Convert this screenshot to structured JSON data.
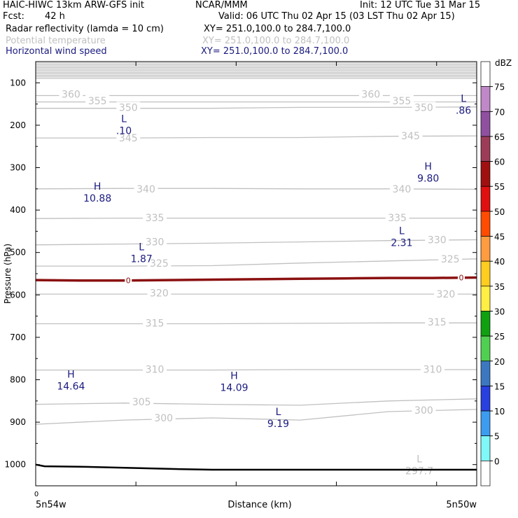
{
  "header": {
    "title": "HAIC-HIWC 13km ARW-GFS init",
    "org": "NCAR/MMM",
    "init": "Init: 12 UTC Tue 31 Mar 15",
    "fcst_label": "Fcst:",
    "fcst_value": "42 h",
    "valid": "Valid: 06 UTC Thu 02 Apr 15 (03 LST Thu 02 Apr 15)",
    "fields": [
      {
        "name": "Radar reflectivity (lamda = 10 cm)",
        "xy": "XY= 251.0,100.0 to 284.7,100.0"
      },
      {
        "name": "Potential temperature",
        "xy": "XY= 251.0,100.0 to 284.7,100.0"
      },
      {
        "name": "Horizontal wind speed",
        "xy": "XY= 251.0,100.0 to 284.7,100.0"
      }
    ]
  },
  "colors": {
    "theta": "#c0c0c0",
    "wind_label": "#1a1a80",
    "freezing_line": "#8b1010",
    "terrain": "#000000"
  },
  "chart_data": {
    "type": "line",
    "ylabel": "Pressure (hPa)",
    "xlabel": "Distance (km)",
    "x_tick_label": "0",
    "x_left_label": "5n54w",
    "x_right_label": "5n50w",
    "y_scale": "linear, reversed (pressure decreasing upward)",
    "ylim": [
      1050,
      50
    ],
    "yticks": [
      100,
      200,
      300,
      400,
      500,
      600,
      700,
      800,
      900,
      1000
    ],
    "x": [
      0,
      0.2,
      0.4,
      0.6,
      0.8,
      1.0
    ],
    "theta_isentropes_K": [
      {
        "level": "300",
        "p": [
          905,
          895,
          890,
          895,
          875,
          870
        ]
      },
      {
        "level": "305",
        "p": [
          858,
          855,
          858,
          860,
          850,
          845
        ]
      },
      {
        "level": "310",
        "p": [
          777,
          777,
          777,
          776,
          776,
          776
        ]
      },
      {
        "level": "315",
        "p": [
          668,
          668,
          668,
          667,
          666,
          666
        ]
      },
      {
        "level": "320",
        "p": [
          598,
          598,
          598,
          598,
          598,
          598
        ]
      },
      {
        "level": "325",
        "p": [
          532,
          532,
          531,
          525,
          520,
          515
        ]
      },
      {
        "level": "330",
        "p": [
          482,
          480,
          478,
          475,
          472,
          470
        ]
      },
      {
        "level": "335",
        "p": [
          420,
          419,
          419,
          419,
          419,
          419
        ]
      },
      {
        "level": "340",
        "p": [
          350,
          349,
          349,
          350,
          350,
          351
        ]
      },
      {
        "level": "345",
        "p": [
          230,
          230,
          229,
          229,
          226,
          225
        ]
      },
      {
        "level": "350",
        "p": [
          160,
          160,
          160,
          158,
          158,
          157
        ]
      },
      {
        "level": "355",
        "p": [
          145,
          145,
          145,
          145,
          145,
          145
        ]
      },
      {
        "level": "360",
        "p": [
          130,
          130,
          130,
          130,
          130,
          130
        ]
      }
    ],
    "theta_labels": [
      {
        "text": "360",
        "x": 0.08,
        "p": 127
      },
      {
        "text": "355",
        "x": 0.14,
        "p": 142
      },
      {
        "text": "350",
        "x": 0.21,
        "p": 158
      },
      {
        "text": "345",
        "x": 0.21,
        "p": 230
      },
      {
        "text": "340",
        "x": 0.25,
        "p": 350
      },
      {
        "text": "335",
        "x": 0.27,
        "p": 418
      },
      {
        "text": "330",
        "x": 0.27,
        "p": 475
      },
      {
        "text": "325",
        "x": 0.28,
        "p": 525
      },
      {
        "text": "320",
        "x": 0.28,
        "p": 595
      },
      {
        "text": "315",
        "x": 0.27,
        "p": 666
      },
      {
        "text": "310",
        "x": 0.27,
        "p": 775
      },
      {
        "text": "305",
        "x": 0.24,
        "p": 852
      },
      {
        "text": "300",
        "x": 0.29,
        "p": 890
      },
      {
        "text": "360",
        "x": 0.76,
        "p": 127
      },
      {
        "text": "355",
        "x": 0.83,
        "p": 142
      },
      {
        "text": "350",
        "x": 0.88,
        "p": 158
      },
      {
        "text": "345",
        "x": 0.85,
        "p": 225
      },
      {
        "text": "340",
        "x": 0.83,
        "p": 350
      },
      {
        "text": "335",
        "x": 0.82,
        "p": 418
      },
      {
        "text": "330",
        "x": 0.91,
        "p": 470
      },
      {
        "text": "325",
        "x": 0.94,
        "p": 515
      },
      {
        "text": "320",
        "x": 0.93,
        "p": 598
      },
      {
        "text": "315",
        "x": 0.91,
        "p": 664
      },
      {
        "text": "310",
        "x": 0.9,
        "p": 775
      },
      {
        "text": "300",
        "x": 0.88,
        "p": 872
      }
    ],
    "extrema_labels": [
      {
        "letter": "L",
        "value": ".86",
        "x": 0.97,
        "p": 150
      },
      {
        "letter": "L",
        "value": ".10",
        "x": 0.2,
        "p": 198
      },
      {
        "letter": "H",
        "value": "9.80",
        "x": 0.89,
        "p": 310
      },
      {
        "letter": "H",
        "value": "10.88",
        "x": 0.14,
        "p": 357
      },
      {
        "letter": "L",
        "value": "2.31",
        "x": 0.83,
        "p": 462
      },
      {
        "letter": "L",
        "value": "1.87",
        "x": 0.24,
        "p": 500
      },
      {
        "letter": "H",
        "value": "14.64",
        "x": 0.08,
        "p": 800
      },
      {
        "letter": "H",
        "value": "14.09",
        "x": 0.45,
        "p": 803
      },
      {
        "letter": "L",
        "value": "9.19",
        "x": 0.55,
        "p": 888
      },
      {
        "letter": "L",
        "value": "297.7",
        "x": 0.87,
        "p": 1000
      }
    ],
    "freezing_level": {
      "label": "0",
      "x": [
        0,
        0.1,
        0.2,
        0.3,
        0.4,
        0.5,
        0.6,
        0.7,
        0.8,
        0.9,
        1.0
      ],
      "p": [
        565,
        566,
        566,
        565,
        564,
        563,
        562,
        561,
        560,
        560,
        559
      ]
    },
    "terrain": {
      "x": [
        0,
        0.02,
        0.1,
        0.3,
        0.4,
        1.0
      ],
      "p": [
        1000,
        1004,
        1005,
        1010,
        1012,
        1012
      ]
    },
    "colorbar": {
      "unit": "dBZ",
      "levels": [
        "75",
        "70",
        "65",
        "60",
        "55",
        "50",
        "45",
        "40",
        "35",
        "30",
        "25",
        "20",
        "15",
        "10",
        "5",
        "0"
      ],
      "colors": [
        "#ffffff",
        "#c088c8",
        "#9050a0",
        "#9c3c58",
        "#a01010",
        "#e01010",
        "#ff4c00",
        "#ff9c40",
        "#ffcc20",
        "#ffee44",
        "#10a010",
        "#50d050",
        "#3c78c0",
        "#2840e0",
        "#3c9cf0",
        "#80f8f8",
        "#ffffff"
      ]
    }
  }
}
